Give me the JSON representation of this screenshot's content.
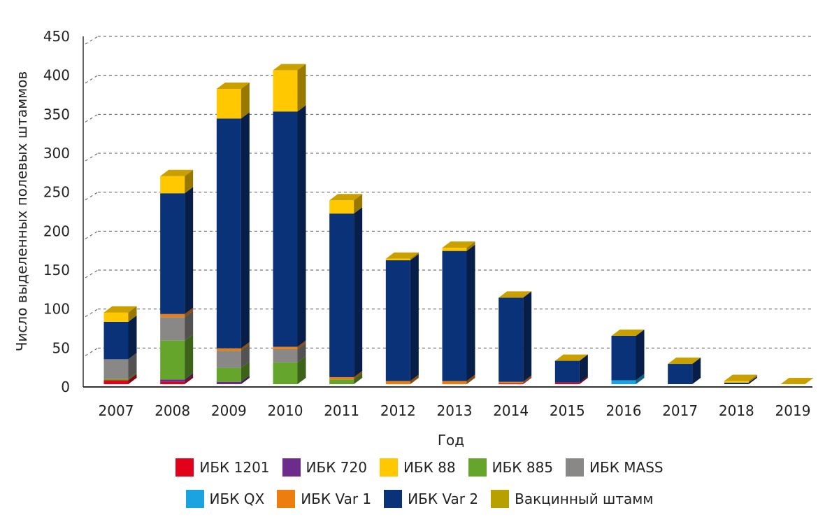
{
  "chart_data": {
    "type": "bar",
    "stacked": true,
    "ylabel": "Число выделенных полевых штаммов",
    "xlabel": "Год",
    "ylim": [
      0,
      450
    ],
    "yticks": [
      "0",
      "50",
      "100",
      "150",
      "200",
      "250",
      "300",
      "350",
      "400",
      "450"
    ],
    "categories": [
      "2007",
      "2008",
      "2009",
      "2010",
      "2011",
      "2012",
      "2013",
      "2014",
      "2015",
      "2016",
      "2017",
      "2018",
      "2019"
    ],
    "series": [
      {
        "name": "ИБК 1201",
        "color": "#e2001a",
        "values": [
          5,
          3,
          0,
          0,
          0,
          0,
          0,
          1,
          2,
          0,
          0,
          0,
          0
        ]
      },
      {
        "name": "ИБК 720",
        "color": "#6b2c8c",
        "values": [
          0,
          3,
          3,
          0,
          0,
          0,
          0,
          0,
          0,
          0,
          0,
          0,
          0
        ]
      },
      {
        "name": "ИБК QX",
        "color": "#1aa3e0",
        "values": [
          0,
          0,
          0,
          0,
          0,
          0,
          0,
          0,
          0,
          5,
          0,
          0,
          0
        ]
      },
      {
        "name": "ИБК 885",
        "color": "#66a52c",
        "values": [
          2,
          50,
          18,
          28,
          6,
          0,
          0,
          0,
          0,
          0,
          0,
          0,
          0
        ]
      },
      {
        "name": "ИБК MASS",
        "color": "#8a8886",
        "values": [
          25,
          30,
          22,
          17,
          0,
          0,
          0,
          0,
          0,
          0,
          0,
          0,
          0
        ]
      },
      {
        "name": "ИБК Var 1",
        "color": "#ee7d10",
        "values": [
          0,
          4,
          3,
          3,
          3,
          4,
          4,
          2,
          0,
          0,
          0,
          0,
          0
        ]
      },
      {
        "name": "ИБК Var 2",
        "color": "#0a3278",
        "values": [
          48,
          155,
          295,
          302,
          210,
          155,
          167,
          108,
          28,
          57,
          26,
          2,
          0
        ]
      },
      {
        "name": "ИБК 88",
        "color": "#ffc800",
        "values": [
          12,
          22,
          38,
          53,
          17,
          2,
          4,
          0,
          0,
          0,
          0,
          2,
          0
        ]
      },
      {
        "name": "Вакцинный штамм",
        "color": "#b8a000",
        "values": [
          0,
          0,
          0,
          0,
          0,
          0,
          0,
          0,
          0,
          0,
          0,
          0,
          0
        ]
      }
    ],
    "legend_rows": [
      [
        "ИБК 1201",
        "ИБК 720",
        "ИБК 88",
        "ИБК 885",
        "ИБК MASS"
      ],
      [
        "ИБК QX",
        "ИБК Var 1",
        "ИБК Var 2",
        "Вакцинный штамм"
      ]
    ],
    "legend_position": "bottom",
    "grid": true
  }
}
